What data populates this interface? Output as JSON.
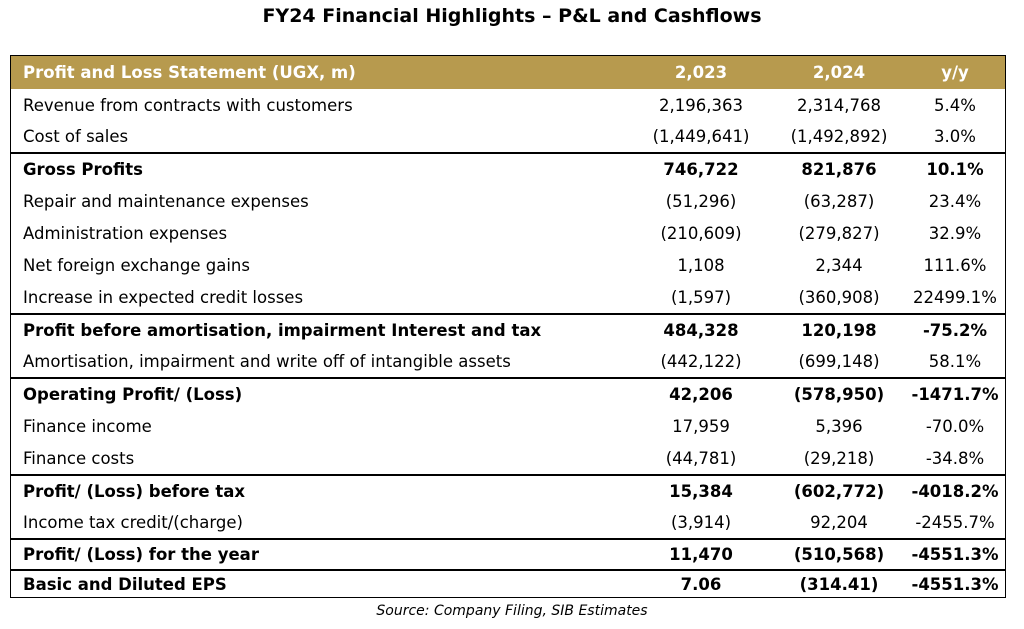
{
  "title": "FY24 Financial Highlights – P&L and Cashflows",
  "table": {
    "header": {
      "label": "Profit and Loss Statement (UGX, m)",
      "col1": "2,023",
      "col2": "2,024",
      "col3": "y/y"
    },
    "rows": [
      {
        "label": "Revenue from contracts with customers",
        "v2023": "2,196,363",
        "v2024": "2,314,768",
        "yy": "5.4%"
      },
      {
        "label": "Cost of sales",
        "v2023": "(1,449,641)",
        "v2024": "(1,492,892)",
        "yy": "3.0%"
      },
      {
        "label": "Gross Profits",
        "v2023": "746,722",
        "v2024": "821,876",
        "yy": "10.1%"
      },
      {
        "label": "Repair and maintenance expenses",
        "v2023": "(51,296)",
        "v2024": "(63,287)",
        "yy": "23.4%"
      },
      {
        "label": "Administration expenses",
        "v2023": "(210,609)",
        "v2024": "(279,827)",
        "yy": "32.9%"
      },
      {
        "label": "Net foreign exchange gains",
        "v2023": "1,108",
        "v2024": "2,344",
        "yy": "111.6%"
      },
      {
        "label": "Increase in expected credit losses",
        "v2023": "(1,597)",
        "v2024": "(360,908)",
        "yy": "22499.1%"
      },
      {
        "label": "Profit before amortisation, impairment Interest and tax",
        "v2023": "484,328",
        "v2024": "120,198",
        "yy": "-75.2%"
      },
      {
        "label": "Amortisation, impairment and write off of intangible assets",
        "v2023": "(442,122)",
        "v2024": "(699,148)",
        "yy": "58.1%"
      },
      {
        "label": "Operating Profit/ (Loss)",
        "v2023": "42,206",
        "v2024": "(578,950)",
        "yy": "-1471.7%"
      },
      {
        "label": "Finance income",
        "v2023": "17,959",
        "v2024": "5,396",
        "yy": "-70.0%"
      },
      {
        "label": "Finance costs",
        "v2023": "(44,781)",
        "v2024": "(29,218)",
        "yy": "-34.8%"
      },
      {
        "label": "Profit/ (Loss) before tax",
        "v2023": "15,384",
        "v2024": "(602,772)",
        "yy": "-4018.2%"
      },
      {
        "label": "Income tax credit/(charge)",
        "v2023": "(3,914)",
        "v2024": "92,204",
        "yy": "-2455.7%"
      },
      {
        "label": "Profit/ (Loss) for the year",
        "v2023": "11,470",
        "v2024": "(510,568)",
        "yy": "-4551.3%"
      },
      {
        "label": "Basic and Diluted EPS",
        "v2023": "7.06",
        "v2024": "(314.41)",
        "yy": "-4551.3%"
      }
    ]
  },
  "source": "Source: Company Filing, SIB Estimates",
  "colors": {
    "header_bg": "#b79a4e",
    "header_text": "#ffffff",
    "text": "#000000"
  }
}
